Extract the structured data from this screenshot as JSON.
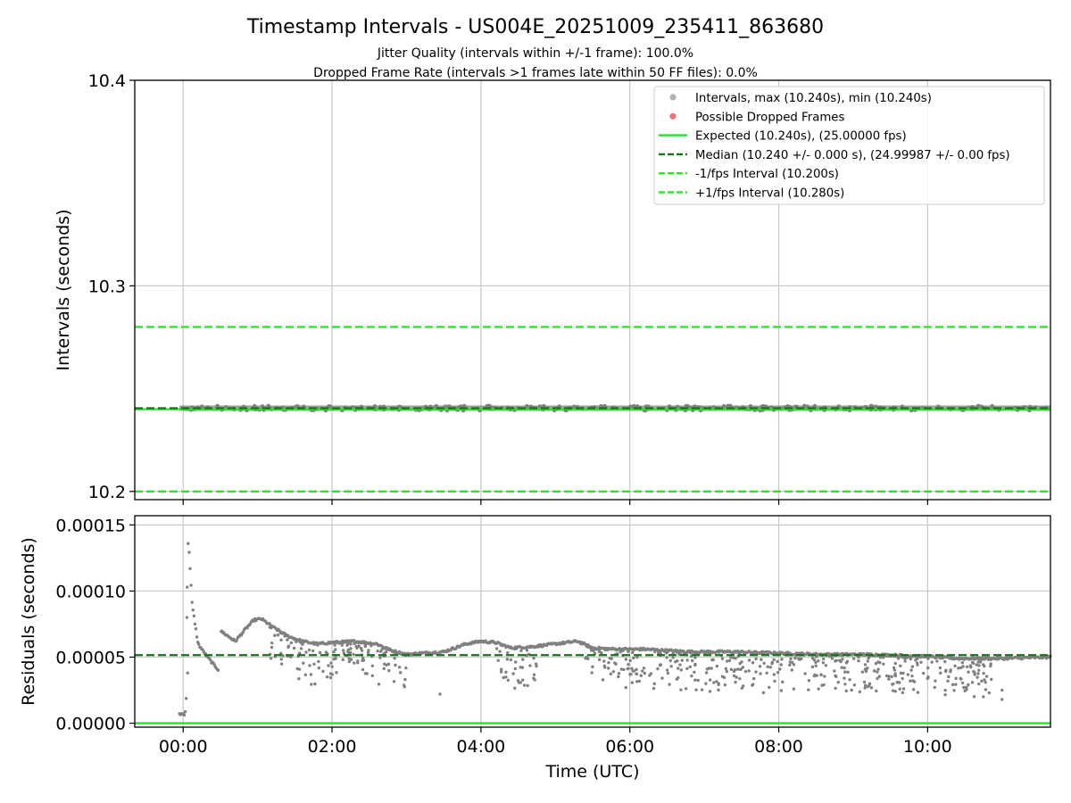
{
  "figure": {
    "title": "Timestamp Intervals - US004E_20251009_235411_863680",
    "subtitle_jitter": "Jitter Quality (intervals within +/-1 frame): 100.0%",
    "subtitle_dropped": "Dropped Frame Rate (intervals >1 frames late within 50 FF files): 0.0%"
  },
  "colors": {
    "points": "#808080",
    "dropped": "#f06060",
    "expected": "#22e622",
    "median": "#117711",
    "fps_interval": "#22ee22",
    "grid": "#c8c8c8"
  },
  "chart_data": [
    {
      "type": "scatter",
      "name": "intervals",
      "ylabel": "Intervals (seconds)",
      "ylim": [
        10.196,
        10.4
      ],
      "yticks": [
        10.2,
        10.3,
        10.4
      ],
      "ytick_labels": [
        "10.2",
        "10.3",
        "10.4"
      ],
      "xlim_hours": [
        -0.65,
        11.65
      ],
      "xticks_hours": [
        0,
        2,
        4,
        6,
        8,
        10
      ],
      "grid": true,
      "reference_lines": {
        "expected": 10.24,
        "median": 10.2405,
        "minus_fps": 10.2,
        "plus_fps": 10.28
      },
      "legend": {
        "position": "top-right",
        "entries": [
          {
            "label": "Intervals, max (10.240s), min (10.240s)",
            "kind": "marker",
            "color": "#aaaaaa"
          },
          {
            "label": "Possible Dropped Frames",
            "kind": "marker",
            "color": "#f06060"
          },
          {
            "label": "Expected (10.240s), (25.00000 fps)",
            "kind": "solid",
            "color": "#22e622"
          },
          {
            "label": "Median (10.240 +/- 0.000 s), (24.99987 +/- 0.00 fps)",
            "kind": "dashed",
            "color": "#117711"
          },
          {
            "label": "-1/fps Interval (10.200s)",
            "kind": "dashed",
            "color": "#22ee22"
          },
          {
            "label": "+1/fps Interval (10.280s)",
            "kind": "dashed",
            "color": "#22ee22"
          }
        ]
      },
      "interval_band": {
        "value": 10.2405,
        "spread": 0.0012,
        "x_start_hours": -0.05,
        "x_end_hours": 11.65
      }
    },
    {
      "type": "scatter",
      "name": "residuals",
      "xlabel": "Time (UTC)",
      "ylabel": "Residuals (seconds)",
      "ylim": [
        -3e-06,
        0.000157
      ],
      "yticks": [
        0,
        5e-05,
        0.0001,
        0.00015
      ],
      "ytick_labels": [
        "0.00000",
        "0.00005",
        "0.00010",
        "0.00015"
      ],
      "xlim_hours": [
        -0.65,
        11.65
      ],
      "xticks_hours": [
        0,
        2,
        4,
        6,
        8,
        10
      ],
      "xtick_labels": [
        "00:00",
        "02:00",
        "04:00",
        "06:00",
        "08:00",
        "10:00"
      ],
      "grid": true,
      "reference_lines": {
        "expected": 0,
        "median": 5.15e-05
      },
      "series": [
        {
          "name": "main_trend",
          "x_hours": [
            -0.05,
            -0.02,
            0.0,
            0.02,
            0.04,
            0.06,
            0.08,
            0.12,
            0.2,
            0.3,
            0.4,
            0.48,
            0.5,
            0.7,
            0.85,
            0.95,
            1.05,
            1.2,
            1.4,
            1.6,
            1.8,
            2.0,
            2.3,
            2.6,
            2.8,
            3.0,
            3.2,
            3.5,
            3.8,
            4.0,
            4.2,
            4.4,
            4.7,
            5.0,
            5.3,
            5.5,
            5.8,
            6.2,
            6.8,
            7.4,
            8.0,
            8.6,
            9.2,
            9.8,
            10.4,
            11.0,
            11.65
          ],
          "y": [
            7e-06,
            7e-06,
            7e-06,
            7e-06,
            1.2e-05,
            0.00014,
            0.00013,
            9e-05,
            6e-05,
            5.2e-05,
            4.5e-05,
            4e-05,
            7e-05,
            6.2e-05,
            7.2e-05,
            7.8e-05,
            7.9e-05,
            7.3e-05,
            6.6e-05,
            6.2e-05,
            6e-05,
            6.1e-05,
            6.2e-05,
            6e-05,
            5.5e-05,
            5.2e-05,
            5.3e-05,
            5.4e-05,
            6e-05,
            6.2e-05,
            6.1e-05,
            5.7e-05,
            5.8e-05,
            6e-05,
            6.2e-05,
            5.7e-05,
            5.6e-05,
            5.6e-05,
            5.4e-05,
            5.4e-05,
            5.3e-05,
            5.2e-05,
            5.2e-05,
            5.1e-05,
            4.9e-05,
            4.9e-05,
            5e-05
          ]
        },
        {
          "name": "lower_envelope",
          "x_hours": [
            1.2,
            1.4,
            1.6,
            1.8,
            2.0,
            2.2,
            2.4,
            2.6,
            2.8,
            3.0,
            4.2,
            4.4,
            4.7,
            5.4,
            5.8,
            6.2,
            6.8,
            7.4,
            8.0,
            8.6,
            9.2,
            9.8,
            10.4,
            10.8
          ],
          "y": [
            4.5e-05,
            3.6e-05,
            3e-05,
            2.8e-05,
            3e-05,
            4.2e-05,
            3.4e-05,
            2.7e-05,
            2.4e-05,
            2.2e-05,
            3e-05,
            2.6e-05,
            2.5e-05,
            3.2e-05,
            2.6e-05,
            2.5e-05,
            2.4e-05,
            2.3e-05,
            2.3e-05,
            2.2e-05,
            2.2e-05,
            2e-05,
            2e-05,
            1.9e-05
          ]
        }
      ]
    }
  ]
}
